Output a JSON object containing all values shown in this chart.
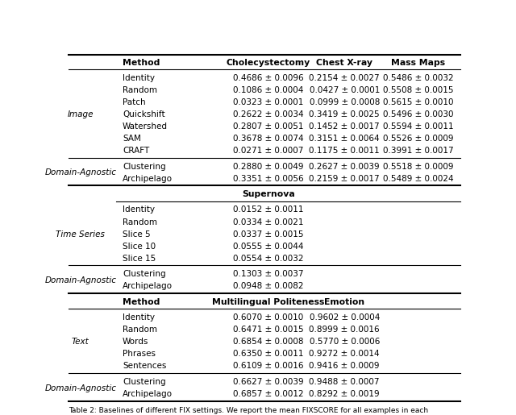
{
  "caption": "Table 2: Baselines of different FIX settings. We report the mean FIXSCORE for all examples in each",
  "background_color": "#ffffff",
  "sections": [
    {
      "group_label": "Image",
      "subheader": null,
      "columns": [
        "Method",
        "Cholecystectomy",
        "Chest X-ray",
        "Mass Maps"
      ],
      "rows": [
        [
          "Identity",
          "0.4686 ± 0.0096",
          "0.2154 ± 0.0027",
          "0.5486 ± 0.0032"
        ],
        [
          "Random",
          "0.1086 ± 0.0004",
          "0.0427 ± 0.0001",
          "0.5508 ± 0.0015"
        ],
        [
          "Patch",
          "0.0323 ± 0.0001",
          "0.0999 ± 0.0008",
          "0.5615 ± 0.0010"
        ],
        [
          "Quickshift",
          "0.2622 ± 0.0034",
          "0.3419 ± 0.0025",
          "0.5496 ± 0.0030"
        ],
        [
          "Watershed",
          "0.2807 ± 0.0051",
          "0.1452 ± 0.0017",
          "0.5594 ± 0.0011"
        ],
        [
          "SAM",
          "0.3678 ± 0.0074",
          "0.3151 ± 0.0064",
          "0.5526 ± 0.0009"
        ],
        [
          "CRAFT",
          "0.0271 ± 0.0007",
          "0.1175 ± 0.0011",
          "0.3991 ± 0.0017"
        ]
      ],
      "domain_label": "Domain-Agnostic",
      "domain_rows": [
        [
          "Clustering",
          "0.2880 ± 0.0049",
          "0.2627 ± 0.0039",
          "0.5518 ± 0.0009"
        ],
        [
          "Archipelago",
          "0.3351 ± 0.0056",
          "0.2159 ± 0.0017",
          "0.5489 ± 0.0024"
        ]
      ]
    },
    {
      "group_label": "Time Series",
      "subheader": "Supernova",
      "columns": [
        "Method",
        "Supernova",
        "",
        ""
      ],
      "rows": [
        [
          "Identity",
          "0.0152 ± 0.0011",
          "",
          ""
        ],
        [
          "Random",
          "0.0334 ± 0.0021",
          "",
          ""
        ],
        [
          "Slice 5",
          "0.0337 ± 0.0015",
          "",
          ""
        ],
        [
          "Slice 10",
          "0.0555 ± 0.0044",
          "",
          ""
        ],
        [
          "Slice 15",
          "0.0554 ± 0.0032",
          "",
          ""
        ]
      ],
      "domain_label": "Domain-Agnostic",
      "domain_rows": [
        [
          "Clustering",
          "0.1303 ± 0.0037",
          "",
          ""
        ],
        [
          "Archipelago",
          "0.0948 ± 0.0082",
          "",
          ""
        ]
      ]
    },
    {
      "group_label": "Text",
      "subheader": null,
      "columns": [
        "Method",
        "Multilingual Politeness",
        "Emotion",
        ""
      ],
      "rows": [
        [
          "Identity",
          "0.6070 ± 0.0010",
          "0.9602 ± 0.0004",
          ""
        ],
        [
          "Random",
          "0.6471 ± 0.0015",
          "0.8999 ± 0.0016",
          ""
        ],
        [
          "Words",
          "0.6854 ± 0.0008",
          "0.5770 ± 0.0006",
          ""
        ],
        [
          "Phrases",
          "0.6350 ± 0.0011",
          "0.9272 ± 0.0014",
          ""
        ],
        [
          "Sentences",
          "0.6109 ± 0.0016",
          "0.9416 ± 0.0009",
          ""
        ]
      ],
      "domain_label": "Domain-Agnostic",
      "domain_rows": [
        [
          "Clustering",
          "0.6627 ± 0.0039",
          "0.9488 ± 0.0007",
          ""
        ],
        [
          "Archipelago",
          "0.6857 ± 0.0012",
          "0.8292 ± 0.0019",
          ""
        ]
      ]
    }
  ]
}
